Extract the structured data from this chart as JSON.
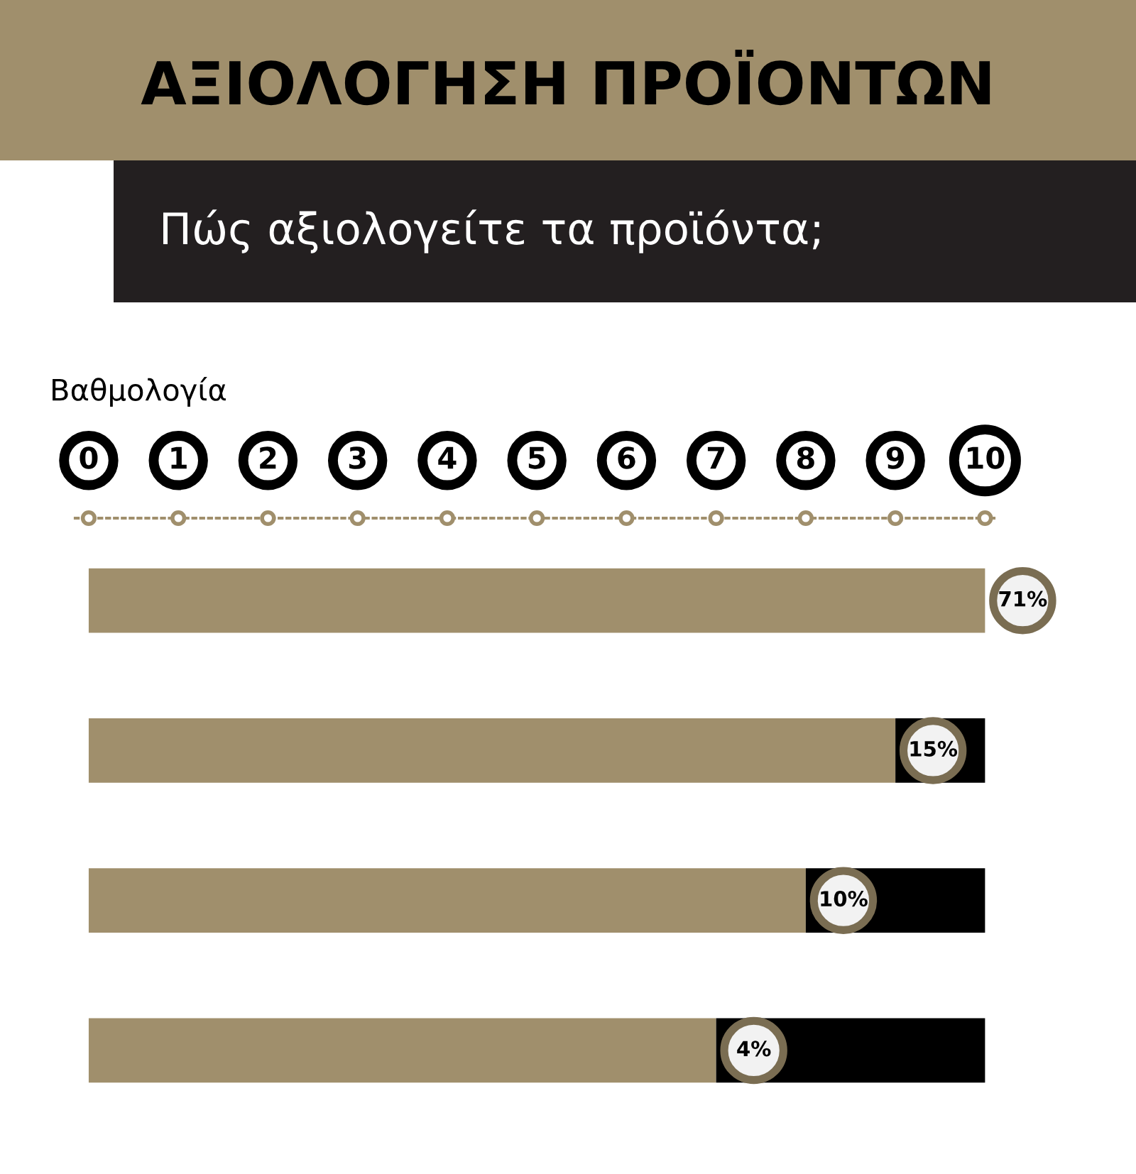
{
  "chart_data": {
    "type": "bar",
    "orientation": "horizontal",
    "stacked": true,
    "title": "ΑΞΙΟΛΟΓΗΣΗ ΠΡΟΪΟΝΤΩΝ",
    "subtitle": "Πώς αξιολογείτε τα προϊόντα;",
    "xlabel": "Βαθμολογία",
    "categories": [
      null,
      null,
      null,
      null
    ],
    "series": [
      {
        "color": "#a08f6c",
        "values": [
          10,
          9,
          8,
          7
        ]
      },
      {
        "color": "#000000",
        "values": [
          0,
          1,
          2,
          3
        ]
      }
    ],
    "xlim": [
      -0.15,
      10.1
    ],
    "xticks": [
      0,
      1,
      2,
      3,
      4,
      5,
      6,
      7,
      8,
      9,
      10
    ],
    "tick_labels": "x",
    "annotations": [
      "71%",
      "15%",
      "10%",
      "4%"
    ]
  }
}
